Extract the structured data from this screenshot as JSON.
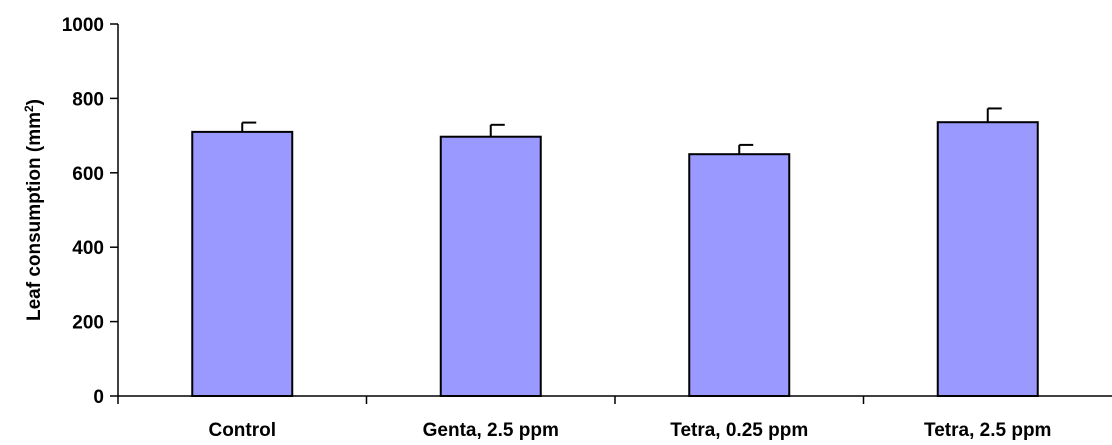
{
  "chart_data": {
    "type": "bar",
    "title": "",
    "xlabel": "",
    "ylabel": {
      "prefix": "Leaf consumption (mm",
      "superscript": "2",
      "suffix": ")"
    },
    "categories": [
      "Control",
      "Genta, 2.5 ppm",
      "Tetra, 0.25 ppm",
      "Tetra, 2.5 ppm"
    ],
    "values": [
      710,
      697,
      650,
      736
    ],
    "errors": [
      25,
      32,
      25,
      37
    ],
    "ylim": [
      0,
      1000
    ],
    "yticks": [
      0,
      200,
      400,
      600,
      800,
      1000
    ],
    "ytick_labels": [
      "0",
      "200",
      "400",
      "600",
      "800",
      "1000"
    ],
    "grid": false,
    "legend": "none",
    "bar_color": "#9999ff",
    "bar_edge_color": "#000000"
  }
}
